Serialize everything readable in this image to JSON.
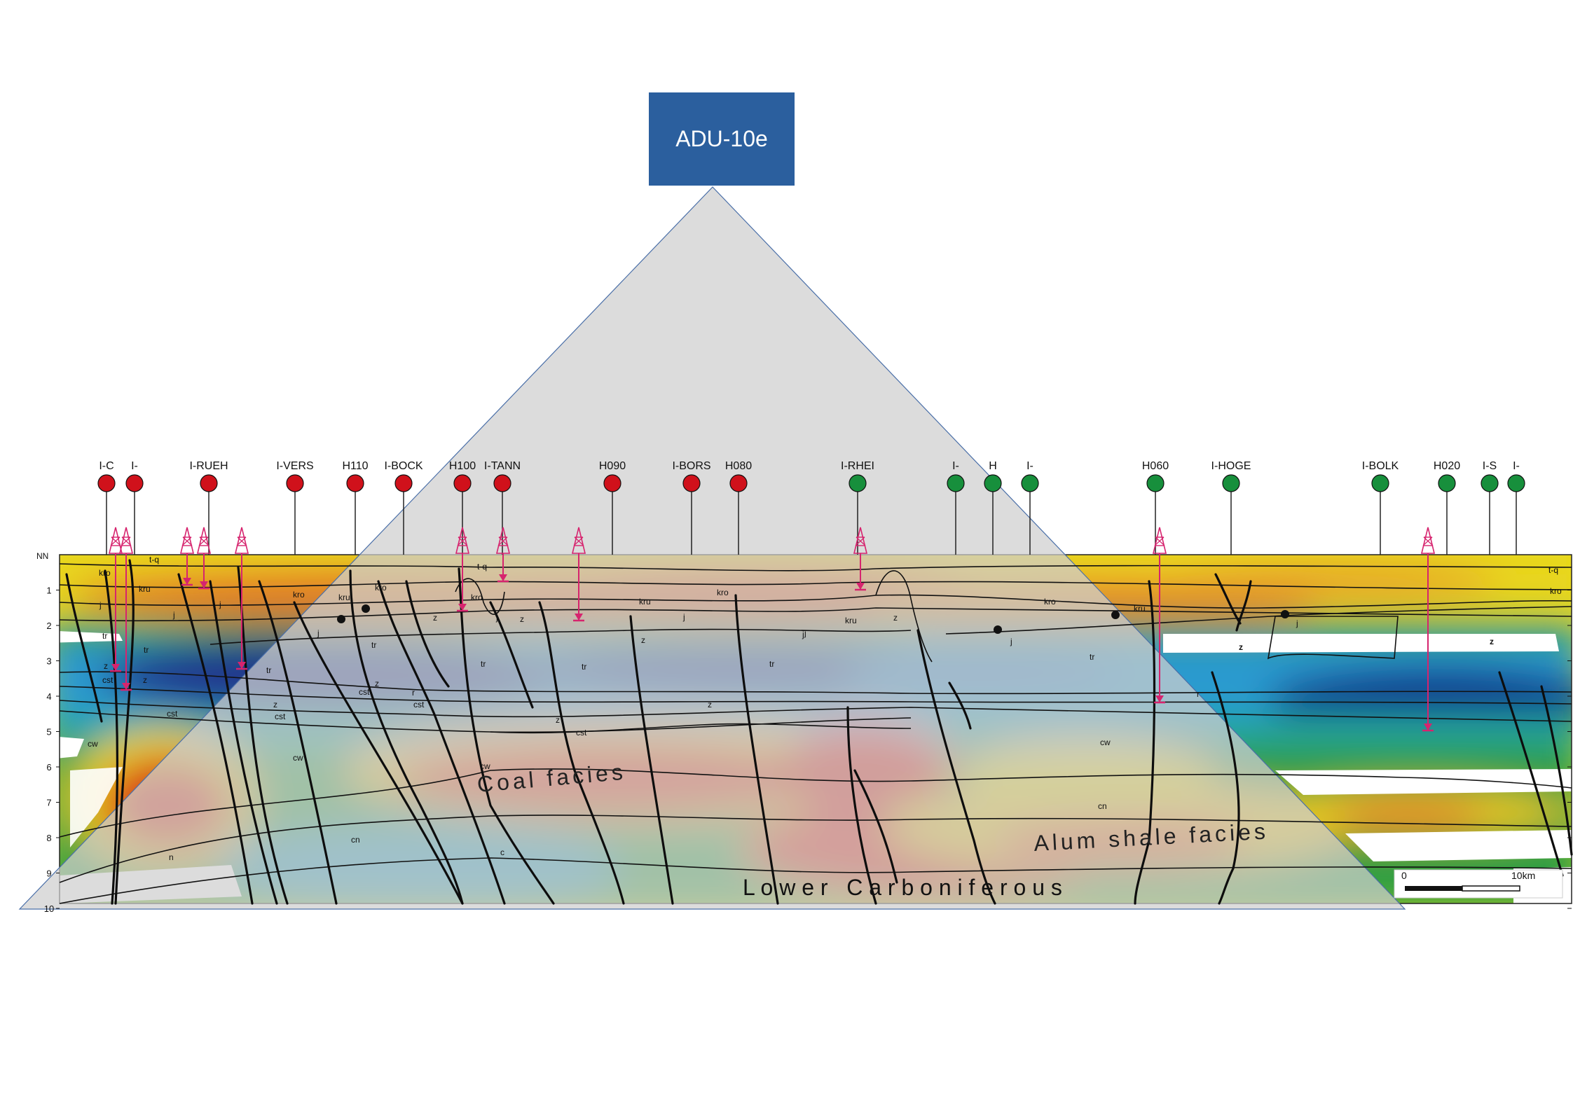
{
  "title": "ADU-10e",
  "colors": {
    "title_box": "#2b5f9e",
    "well_red": "#d0111b",
    "well_green": "#178f3c",
    "rig_marker": "#d6246e",
    "fan": "#d9d9d9"
  },
  "wells": [
    {
      "label": "I-C",
      "status": "red"
    },
    {
      "label": "I-",
      "status": "red"
    },
    {
      "label": "I-RUEH",
      "status": "red"
    },
    {
      "label": "I-VERS",
      "status": "red"
    },
    {
      "label": "H110",
      "status": "red"
    },
    {
      "label": "I-BOCK",
      "status": "red"
    },
    {
      "label": "H100",
      "status": "red"
    },
    {
      "label": "I-TANN",
      "status": "red"
    },
    {
      "label": "H090",
      "status": "red"
    },
    {
      "label": "I-BORS",
      "status": "red"
    },
    {
      "label": "H080",
      "status": "red"
    },
    {
      "label": "I-RHEI",
      "status": "green"
    },
    {
      "label": "I-",
      "status": "green"
    },
    {
      "label": "H",
      "status": "green"
    },
    {
      "label": "I-",
      "status": "green"
    },
    {
      "label": "H060",
      "status": "green"
    },
    {
      "label": "I-HOGE",
      "status": "green"
    },
    {
      "label": "I-BOLK",
      "status": "green"
    },
    {
      "label": "H020",
      "status": "green"
    },
    {
      "label": "I-S",
      "status": "green"
    },
    {
      "label": "I-",
      "status": "green"
    }
  ],
  "depth_axis": {
    "top_label": "NN",
    "ticks": [
      "1",
      "2",
      "3",
      "4",
      "5",
      "6",
      "7",
      "8",
      "9",
      "10"
    ]
  },
  "formations": [
    "t-q",
    "kro",
    "kru",
    "j",
    "tr",
    "z",
    "r",
    "cst",
    "cw",
    "cn",
    "c",
    "n"
  ],
  "facies_labels": {
    "coal": "Coal facies",
    "alum": "Alum shale facies",
    "lower_carb": "L o w e r   C a r b o n i f e r o u s"
  },
  "scale_bar": {
    "start": "0",
    "end": "10km"
  }
}
